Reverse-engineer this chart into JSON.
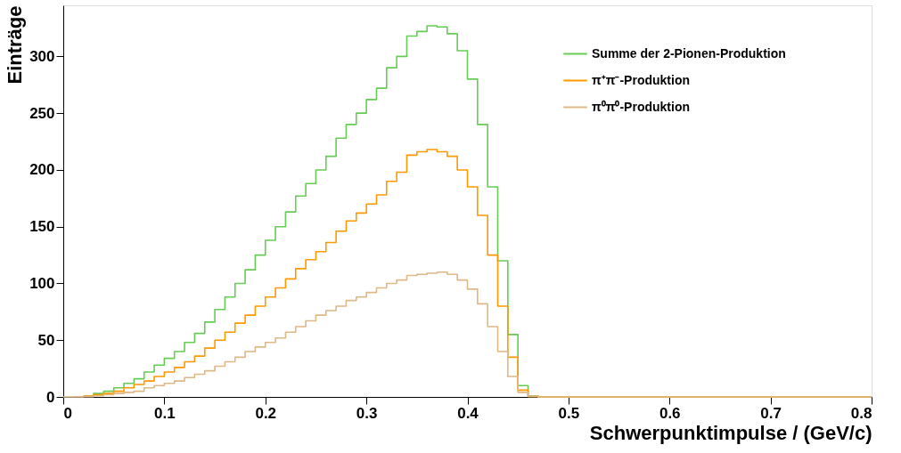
{
  "chart_data": {
    "type": "step",
    "xlabel": "Schwerpunktimpulse / (GeV/c)",
    "ylabel": "Einträge",
    "x": [
      0,
      0.01,
      0.02,
      0.03,
      0.04,
      0.05,
      0.06,
      0.07,
      0.08,
      0.09,
      0.1,
      0.11,
      0.12,
      0.13,
      0.14,
      0.15,
      0.16,
      0.17,
      0.18,
      0.19,
      0.2,
      0.21,
      0.22,
      0.23,
      0.24,
      0.25,
      0.26,
      0.27,
      0.28,
      0.29,
      0.3,
      0.31,
      0.32,
      0.33,
      0.34,
      0.35,
      0.36,
      0.37,
      0.38,
      0.39,
      0.4,
      0.41,
      0.42,
      0.43,
      0.44,
      0.45,
      0.46,
      0.47,
      0.8
    ],
    "series": [
      {
        "name": "Summe der 2-Pionen-Produktion",
        "color": "#66cc55",
        "values": [
          null,
          null,
          1,
          3,
          5,
          8,
          12,
          16,
          22,
          28,
          34,
          40,
          48,
          56,
          66,
          77,
          88,
          100,
          112,
          125,
          138,
          150,
          163,
          177,
          188,
          200,
          212,
          228,
          240,
          250,
          262,
          272,
          290,
          300,
          318,
          322,
          327,
          326,
          320,
          305,
          280,
          240,
          185,
          120,
          55,
          10,
          1,
          0,
          0
        ]
      },
      {
        "name": "π⁺π⁻-Produktion",
        "color": "#ff9900",
        "values": [
          null,
          null,
          0.7,
          2,
          3,
          5,
          8,
          11,
          14,
          18,
          22,
          26,
          31,
          36,
          43,
          50,
          57,
          65,
          72,
          80,
          88,
          96,
          104,
          113,
          121,
          128,
          136,
          146,
          155,
          162,
          170,
          178,
          190,
          198,
          213,
          216,
          218,
          216,
          212,
          200,
          185,
          160,
          125,
          80,
          35,
          6,
          0.5,
          0,
          0
        ]
      },
      {
        "name": "π⁰π⁰-Produktion",
        "color": "#deb887",
        "values": [
          0,
          0.1,
          0.3,
          1,
          2,
          3,
          4,
          5,
          8,
          10,
          12,
          14,
          17,
          20,
          23,
          27,
          31,
          35,
          40,
          44,
          48,
          52,
          57,
          62,
          67,
          72,
          76,
          80,
          85,
          88,
          92,
          96,
          100,
          103,
          107,
          108,
          109,
          110,
          108,
          103,
          95,
          82,
          62,
          40,
          18,
          4,
          0.5,
          0,
          0
        ]
      }
    ],
    "xlim": [
      0,
      0.8
    ],
    "xticks": [
      0,
      0.1,
      0.2,
      0.3,
      0.4,
      0.5,
      0.6,
      0.7,
      0.8
    ],
    "ylim": [
      0,
      345
    ],
    "yticks": [
      0,
      50,
      100,
      150,
      200,
      250,
      300
    ],
    "grid": false,
    "legend": "top right",
    "line_style": "solid",
    "marker": "none"
  }
}
